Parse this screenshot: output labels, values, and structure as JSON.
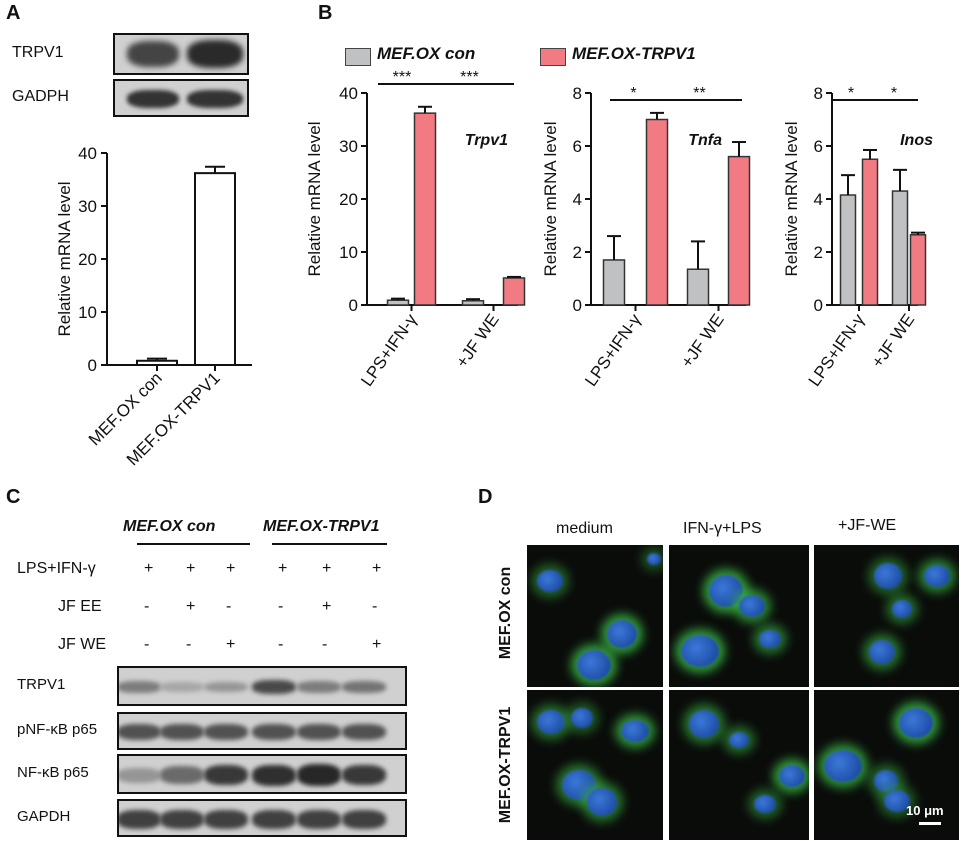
{
  "panels": {
    "a": "A",
    "b": "B",
    "c": "C",
    "d": "D"
  },
  "panel_a": {
    "blot_labels": [
      "TRPV1",
      "GADPH"
    ],
    "chart": {
      "type": "bar",
      "categories": [
        "MEF.OX con",
        "MEF.OX-TRPV1"
      ],
      "values": [
        0.8,
        36.2
      ],
      "errors": [
        0.4,
        1.2
      ],
      "ylabel": "Relative mRNA  level",
      "ylim": [
        0,
        40
      ],
      "yticks": [
        "0",
        "10",
        "20",
        "30",
        "40"
      ]
    }
  },
  "panel_b": {
    "legend": [
      "MEF.OX con",
      "MEF.OX-TRPV1"
    ],
    "colors": {
      "con": "#bfc1c2",
      "trpv1": "#f27a82"
    },
    "ylabel": "Relative mRNA  level",
    "categories": [
      "LPS+IFN-γ",
      "+JF WE"
    ]
  },
  "chart_data": [
    {
      "type": "bar",
      "title": "Trpv1",
      "categories": [
        "LPS+IFN-γ",
        "+JF WE"
      ],
      "series": [
        {
          "name": "MEF.OX con",
          "values": [
            0.9,
            0.8
          ],
          "errors": [
            0.3,
            0.3
          ]
        },
        {
          "name": "MEF.OX-TRPV1",
          "values": [
            36.2,
            5.1
          ],
          "errors": [
            1.2,
            0.2
          ]
        }
      ],
      "ylim": [
        0,
        40
      ],
      "yticks": [
        "0",
        "10",
        "20",
        "30",
        "40"
      ],
      "significance": [
        "***",
        "***"
      ]
    },
    {
      "type": "bar",
      "title": "Tnfa",
      "categories": [
        "LPS+IFN-γ",
        "+JF WE"
      ],
      "series": [
        {
          "name": "MEF.OX con",
          "values": [
            1.7,
            1.35
          ],
          "errors": [
            0.9,
            1.05
          ]
        },
        {
          "name": "MEF.OX-TRPV1",
          "values": [
            7.0,
            5.6
          ],
          "errors": [
            0.25,
            0.55
          ]
        }
      ],
      "ylim": [
        0,
        8
      ],
      "yticks": [
        "0",
        "2",
        "4",
        "6",
        "8"
      ],
      "significance": [
        "*",
        "**"
      ]
    },
    {
      "type": "bar",
      "title": "Inos",
      "categories": [
        "LPS+IFN-γ",
        "+JF WE"
      ],
      "series": [
        {
          "name": "MEF.OX con",
          "values": [
            4.15,
            4.3
          ],
          "errors": [
            0.75,
            0.8
          ]
        },
        {
          "name": "MEF.OX-TRPV1",
          "values": [
            5.5,
            2.65
          ],
          "errors": [
            0.35,
            0.08
          ]
        }
      ],
      "ylim": [
        0,
        8
      ],
      "yticks": [
        "0",
        "2",
        "4",
        "6",
        "8"
      ],
      "significance": [
        "*",
        "*"
      ]
    }
  ],
  "panel_c": {
    "groups": [
      "MEF.OX con",
      "MEF.OX-TRPV1"
    ],
    "rows": [
      {
        "label": "LPS+IFN-γ",
        "values": [
          "+",
          "+",
          "+",
          "+",
          "+",
          "+"
        ]
      },
      {
        "label": "JF EE",
        "values": [
          "-",
          "+",
          "-",
          "-",
          "+",
          "-"
        ]
      },
      {
        "label": "JF WE",
        "values": [
          "-",
          "-",
          "+",
          "-",
          "-",
          "+"
        ]
      }
    ],
    "blot_labels": [
      "TRPV1",
      "pNF-κB p65",
      "NF-κB p65",
      "GAPDH"
    ]
  },
  "panel_d": {
    "columns": [
      "medium",
      "IFN-γ+LPS",
      "+JF-WE"
    ],
    "rows": [
      "MEF.OX con",
      "MEF.OX-TRPV1"
    ],
    "scalebar": "10 μm"
  }
}
